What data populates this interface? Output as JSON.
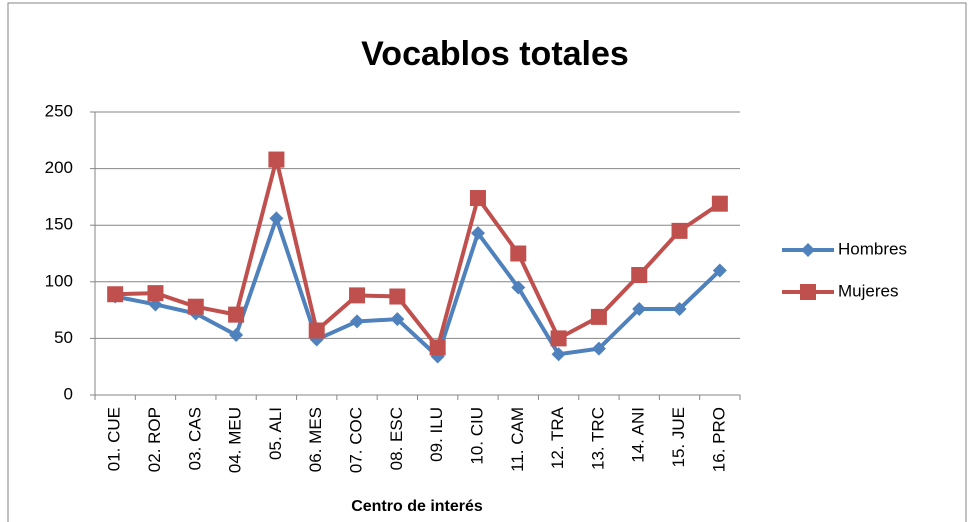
{
  "chart_data": {
    "type": "line",
    "title": "Vocablos totales",
    "x_label": "Centro de interés",
    "categories": [
      "01. CUE",
      "02. ROP",
      "03. CAS",
      "04. MEU",
      "05. ALI",
      "06. MES",
      "07. COC",
      "08. ESC",
      "09. ILU",
      "10. CIU",
      "11. CAM",
      "12. TRA",
      "13. TRC",
      "14. ANI",
      "15. JUE",
      "16. PRO"
    ],
    "series": [
      {
        "name": "Hombres",
        "color": "#4f81bd",
        "marker": "diamond",
        "values": [
          87,
          80,
          72,
          53,
          156,
          49,
          65,
          67,
          34,
          143,
          95,
          36,
          41,
          76,
          76,
          110
        ]
      },
      {
        "name": "Mujeres",
        "color": "#c0504d",
        "marker": "square",
        "values": [
          89,
          90,
          78,
          71,
          208,
          57,
          88,
          87,
          42,
          174,
          125,
          50,
          69,
          106,
          145,
          169
        ]
      }
    ],
    "ylim": [
      0,
      250
    ],
    "yticks": [
      0,
      50,
      100,
      150,
      200,
      250
    ],
    "grid": true,
    "legend": "right"
  }
}
